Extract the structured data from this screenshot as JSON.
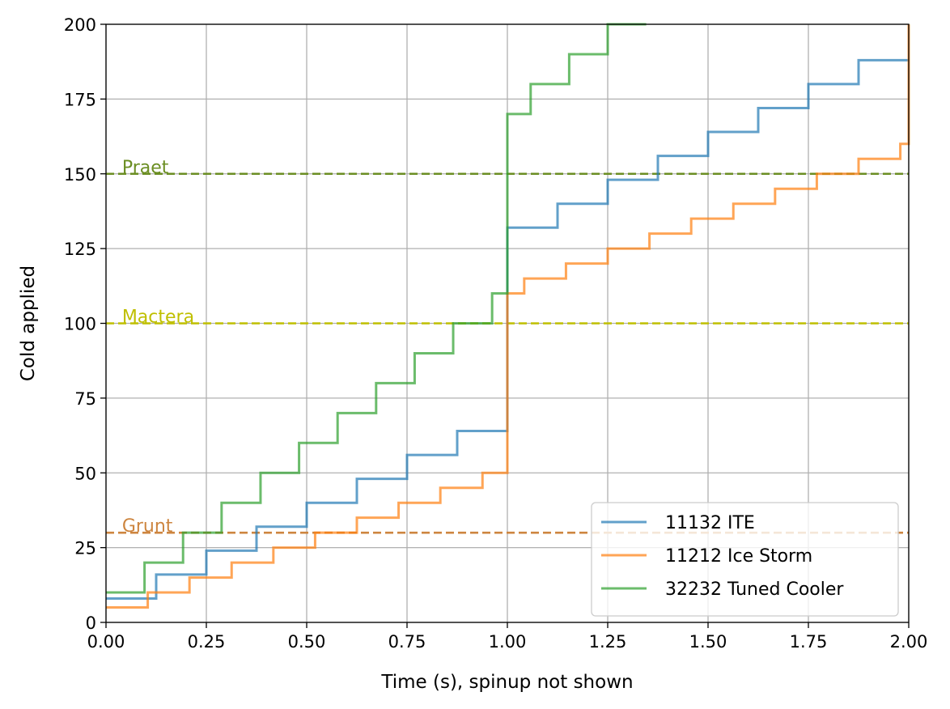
{
  "chart_data": {
    "type": "line",
    "xlabel": "Time (s), spinup not shown",
    "ylabel": "Cold applied",
    "xlim": [
      0,
      2
    ],
    "ylim": [
      0,
      200
    ],
    "xticks": [
      0,
      0.25,
      0.5,
      0.75,
      1.0,
      1.25,
      1.5,
      1.75,
      2.0
    ],
    "xtick_labels": [
      "0.00",
      "0.25",
      "0.50",
      "0.75",
      "1.00",
      "1.25",
      "1.50",
      "1.75",
      "2.00"
    ],
    "yticks": [
      0,
      25,
      50,
      75,
      100,
      125,
      150,
      175,
      200
    ],
    "ytick_labels": [
      "0",
      "25",
      "50",
      "75",
      "100",
      "125",
      "150",
      "175",
      "200"
    ],
    "grid": true,
    "legend_position": "bottom-right",
    "series": [
      {
        "name": "11132 ITE",
        "color": "#1f77b4",
        "step": "post",
        "x": [
          0,
          0.125,
          0.25,
          0.375,
          0.5,
          0.625,
          0.75,
          0.875,
          1.0,
          1.125,
          1.25,
          1.375,
          1.5,
          1.625,
          1.75,
          1.875,
          2.0
        ],
        "y": [
          8,
          16,
          24,
          32,
          40,
          48,
          56,
          64,
          132,
          140,
          148,
          156,
          164,
          172,
          180,
          188,
          188
        ]
      },
      {
        "name": "11212 Ice Storm",
        "color": "#ff7f0e",
        "step": "post",
        "x": [
          0,
          0.104,
          0.208,
          0.313,
          0.417,
          0.521,
          0.625,
          0.729,
          0.833,
          0.938,
          1.0,
          1.042,
          1.146,
          1.25,
          1.354,
          1.458,
          1.563,
          1.667,
          1.771,
          1.875,
          1.979,
          2.0
        ],
        "y": [
          5,
          10,
          15,
          20,
          25,
          30,
          35,
          40,
          45,
          50,
          110,
          115,
          120,
          125,
          130,
          135,
          140,
          145,
          150,
          155,
          160,
          200
        ]
      },
      {
        "name": "32232 Tuned Cooler",
        "color": "#2ca02c",
        "step": "post",
        "x": [
          0,
          0.096,
          0.192,
          0.288,
          0.385,
          0.481,
          0.577,
          0.673,
          0.769,
          0.865,
          0.962,
          1.0,
          1.058,
          1.154,
          1.25,
          1.346
        ],
        "y": [
          10,
          20,
          30,
          40,
          50,
          60,
          70,
          80,
          90,
          100,
          110,
          170,
          180,
          190,
          200,
          200
        ]
      }
    ],
    "reference_lines": [
      {
        "label": "Grunt",
        "y": 30,
        "color": "#cd853f"
      },
      {
        "label": "Mactera",
        "y": 100,
        "color": "#bfbf00"
      },
      {
        "label": "Praet",
        "y": 150,
        "color": "#6b8e23"
      }
    ]
  }
}
